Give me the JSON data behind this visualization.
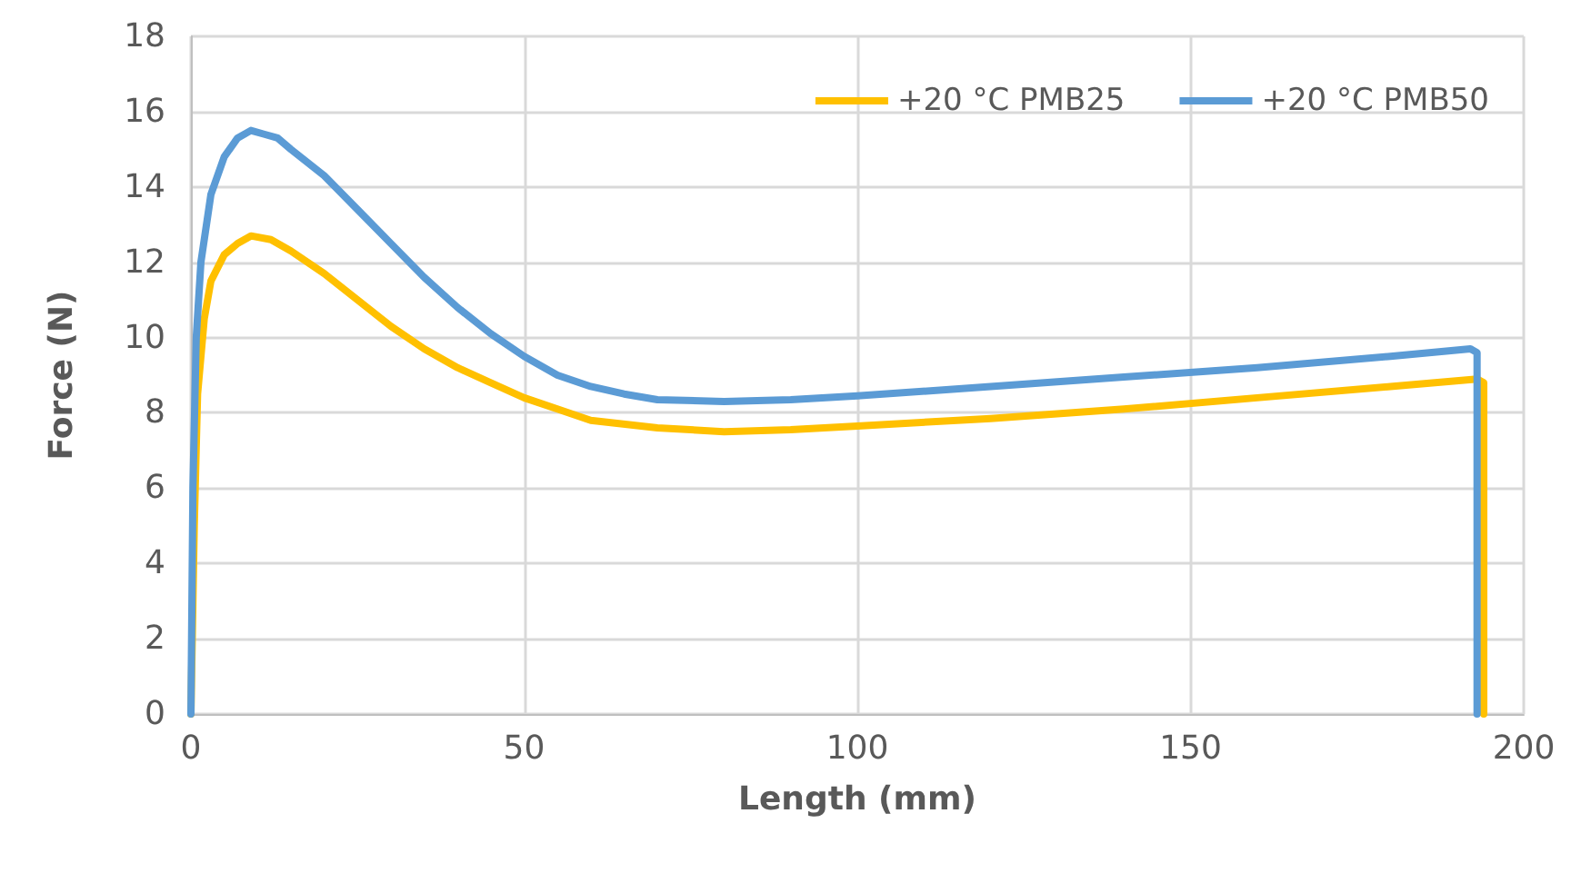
{
  "chart_data": {
    "type": "line",
    "xlabel": "Length (mm)",
    "ylabel": "Force (N)",
    "xlim": [
      0,
      200
    ],
    "xticks": [
      0,
      50,
      100,
      150,
      200
    ],
    "ylim": [
      0,
      18
    ],
    "yticks": [
      0,
      2,
      4,
      6,
      8,
      10,
      12,
      14,
      16,
      18
    ],
    "grid": true,
    "legend": "top right",
    "marker": "none",
    "line_style": "solid",
    "series": [
      {
        "name": "+20 °C PMB25",
        "color": "#ffc000",
        "x": [
          0,
          0.5,
          1,
          2,
          3,
          5,
          7,
          9,
          12,
          15,
          20,
          25,
          30,
          35,
          40,
          45,
          50,
          55,
          60,
          70,
          80,
          90,
          100,
          120,
          140,
          160,
          180,
          193,
          194,
          194
        ],
        "values": [
          0,
          5,
          8.5,
          10.5,
          11.5,
          12.2,
          12.5,
          12.7,
          12.6,
          12.3,
          11.7,
          11.0,
          10.3,
          9.7,
          9.2,
          8.8,
          8.4,
          8.1,
          7.8,
          7.6,
          7.5,
          7.55,
          7.65,
          7.85,
          8.1,
          8.4,
          8.7,
          8.9,
          8.8,
          0
        ]
      },
      {
        "name": "+20 °C PMB50",
        "color": "#5b9bd5",
        "x": [
          0,
          0.3,
          0.8,
          1.5,
          3,
          5,
          7,
          9,
          11,
          13,
          15,
          20,
          25,
          30,
          35,
          40,
          45,
          50,
          55,
          60,
          65,
          70,
          80,
          90,
          100,
          120,
          140,
          160,
          180,
          192,
          193,
          193
        ],
        "values": [
          0,
          6,
          10,
          12,
          13.8,
          14.8,
          15.3,
          15.5,
          15.4,
          15.3,
          15.0,
          14.3,
          13.4,
          12.5,
          11.6,
          10.8,
          10.1,
          9.5,
          9.0,
          8.7,
          8.5,
          8.35,
          8.3,
          8.35,
          8.45,
          8.7,
          8.95,
          9.2,
          9.5,
          9.7,
          9.6,
          0
        ]
      }
    ]
  }
}
